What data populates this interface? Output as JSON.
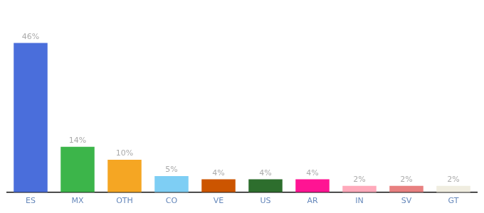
{
  "chart_data": {
    "type": "bar",
    "categories": [
      "ES",
      "MX",
      "OTH",
      "CO",
      "VE",
      "US",
      "AR",
      "IN",
      "SV",
      "GT"
    ],
    "values": [
      46,
      14,
      10,
      5,
      4,
      4,
      4,
      2,
      2,
      2
    ],
    "value_labels": [
      "46%",
      "14%",
      "10%",
      "5%",
      "4%",
      "4%",
      "4%",
      "2%",
      "2%",
      "2%"
    ],
    "colors": [
      "#4a6edb",
      "#3cb54a",
      "#f5a623",
      "#7ecef4",
      "#cc5500",
      "#2d6e2d",
      "#ff1493",
      "#ffaabb",
      "#e88080",
      "#f0ede0"
    ],
    "ylim": [
      0,
      54
    ],
    "grid": false,
    "data_labels": true,
    "tick_labels": "x"
  }
}
